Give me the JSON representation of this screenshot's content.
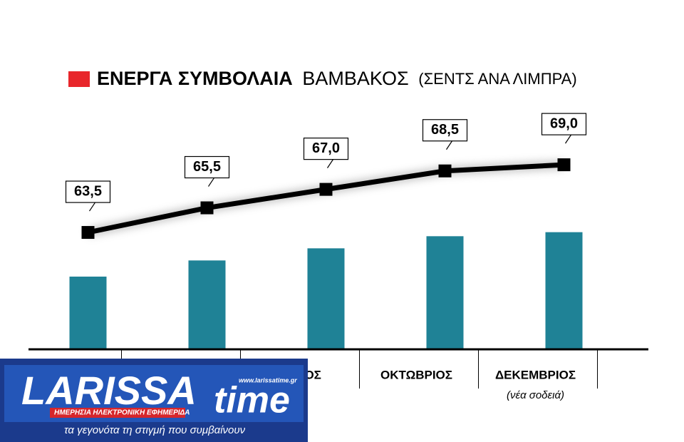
{
  "chart_data": {
    "type": "bar-line",
    "title": "ΕΝΕΡΓΑ ΣΥΜΒΟΛΑΙΑ",
    "subtitle": "ΒΑΜΒΑΚΟΣ",
    "unit": "(ΣΕΝΤΣ ΑΝΑ ΛΙΜΠΡΑ)",
    "categories": [
      null,
      null,
      "ΙΟΥΛΙΟΣ",
      "ΟΚΤΩΒΡΙΟΣ",
      "ΔΕΚΕΜΒΡΙΟΣ"
    ],
    "annotation": "(νέα σοδειά)",
    "values": [
      63.5,
      65.5,
      67.0,
      68.5,
      69.0
    ],
    "value_labels": [
      "63,5",
      "65,5",
      "67,0",
      "68,5",
      "69,0"
    ],
    "bar_color": "#1f8296",
    "line_color": "#000000",
    "title_marker_color": "#e8262b",
    "ylim": [
      54.5,
      84.5
    ],
    "y2lim": [
      54,
      73.7
    ]
  },
  "logo": {
    "name": "LARISSA",
    "name2": "time",
    "url": "www.larissatime.gr",
    "tagline": "ΗΜΕΡΗΣΙΑ ΗΛΕΚΤΡΟΝΙΚΗ ΕΦΗΜΕΡΙΔΑ",
    "slogan": "τα γεγονότα τη στιγμή που συμβαίνουν"
  }
}
